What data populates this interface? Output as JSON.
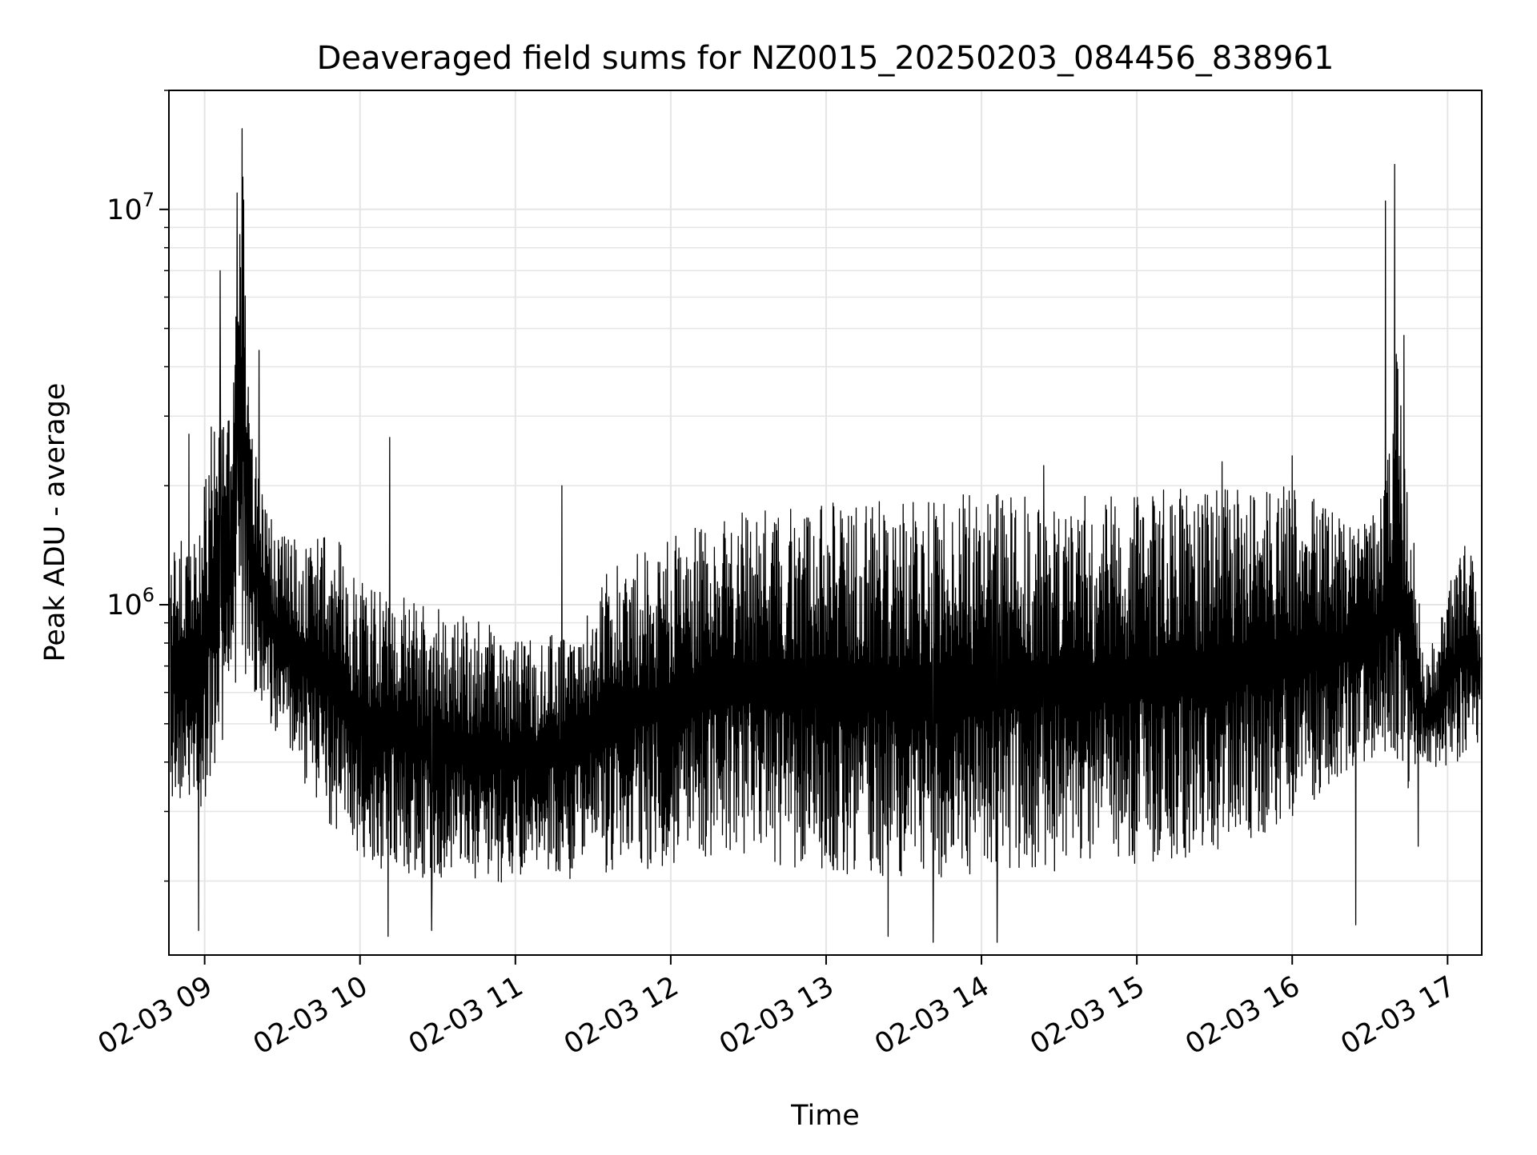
{
  "chart_data": {
    "type": "line",
    "title": "Deaveraged field sums for NZ0015_20250203_084456_838961",
    "xlabel": "Time",
    "ylabel": "Peak ADU - average",
    "yscale": "log",
    "grid": true,
    "legend": "none",
    "line_color": "#000000",
    "grid_color": "#e5e5e5",
    "x_unit": "hour of 2025-02-03",
    "xlim": [
      8.77,
      17.22
    ],
    "ylim": [
      130000,
      20000000
    ],
    "x_ticks": [
      {
        "value": 9,
        "label": "02-03 09"
      },
      {
        "value": 10,
        "label": "02-03 10"
      },
      {
        "value": 11,
        "label": "02-03 11"
      },
      {
        "value": 12,
        "label": "02-03 12"
      },
      {
        "value": 13,
        "label": "02-03 13"
      },
      {
        "value": 14,
        "label": "02-03 14"
      },
      {
        "value": 15,
        "label": "02-03 15"
      },
      {
        "value": 16,
        "label": "02-03 16"
      },
      {
        "value": 17,
        "label": "02-03 17"
      }
    ],
    "y_ticks": [
      {
        "value": 1000000,
        "base": "10",
        "exp": "6"
      },
      {
        "value": 10000000,
        "base": "10",
        "exp": "7"
      }
    ],
    "series": [
      {
        "x": [
          8.78,
          8.85,
          8.92,
          8.97,
          9.02,
          9.07,
          9.12,
          9.17,
          9.22,
          9.25,
          9.3,
          9.35,
          9.45,
          9.55,
          9.65,
          9.75,
          9.85,
          10.0,
          10.2,
          10.4,
          10.6,
          10.8,
          11.0,
          11.2,
          11.4,
          11.6,
          11.8,
          12.0,
          12.2,
          12.4,
          12.6,
          12.8,
          13.0,
          13.2,
          13.4,
          13.6,
          13.8,
          14.0,
          14.2,
          14.4,
          14.6,
          14.8,
          15.0,
          15.2,
          15.4,
          15.6,
          15.8,
          16.0,
          16.2,
          16.4,
          16.55,
          16.62,
          16.67,
          16.72,
          16.78,
          16.85,
          16.95,
          17.05,
          17.15,
          17.21
        ],
        "low": [
          330000,
          310000,
          300000,
          290000,
          340000,
          400000,
          450000,
          520000,
          700000,
          650000,
          600000,
          560000,
          480000,
          400000,
          350000,
          300000,
          260000,
          220000,
          210000,
          200000,
          200000,
          195000,
          200000,
          205000,
          200000,
          205000,
          210000,
          220000,
          230000,
          240000,
          225000,
          215000,
          210000,
          205000,
          200000,
          200000,
          205000,
          210000,
          205000,
          205000,
          210000,
          215000,
          220000,
          225000,
          230000,
          240000,
          260000,
          280000,
          330000,
          380000,
          420000,
          420000,
          360000,
          330000,
          350000,
          380000,
          380000,
          390000,
          420000,
          450000
        ],
        "high": [
          1300000,
          1500000,
          1700000,
          1500000,
          2500000,
          3500000,
          3000000,
          3500000,
          9000000,
          13000000,
          3000000,
          2500000,
          1600000,
          1500000,
          1500000,
          1500000,
          1500000,
          1200000,
          1100000,
          1000000,
          950000,
          900000,
          850000,
          850000,
          900000,
          1300000,
          1400000,
          1500000,
          1600000,
          1700000,
          1750000,
          1800000,
          1800000,
          1850000,
          1850000,
          1850000,
          1900000,
          1900000,
          1900000,
          1900000,
          1900000,
          1900000,
          1950000,
          1950000,
          2000000,
          2000000,
          2000000,
          2000000,
          1800000,
          1600000,
          1700000,
          2500000,
          4500000,
          2500000,
          1800000,
          700000,
          900000,
          1300000,
          1500000,
          900000
        ],
        "spikes": [
          {
            "x": 8.9,
            "y": 2700000
          },
          {
            "x": 9.1,
            "y": 7000000
          },
          {
            "x": 9.21,
            "y": 11000000
          },
          {
            "x": 9.24,
            "y": 16000000
          },
          {
            "x": 9.35,
            "y": 4400000
          },
          {
            "x": 10.19,
            "y": 2650000
          },
          {
            "x": 11.3,
            "y": 2000000
          },
          {
            "x": 14.4,
            "y": 2250000
          },
          {
            "x": 15.55,
            "y": 2300000
          },
          {
            "x": 16.0,
            "y": 2380000
          },
          {
            "x": 16.6,
            "y": 10500000
          },
          {
            "x": 16.66,
            "y": 13000000
          },
          {
            "x": 16.72,
            "y": 4800000
          }
        ],
        "dips": [
          {
            "x": 8.96,
            "y": 150000
          },
          {
            "x": 10.18,
            "y": 145000
          },
          {
            "x": 10.46,
            "y": 150000
          },
          {
            "x": 13.4,
            "y": 145000
          },
          {
            "x": 13.69,
            "y": 140000
          },
          {
            "x": 14.1,
            "y": 140000
          },
          {
            "x": 16.41,
            "y": 155000
          },
          {
            "x": 16.81,
            "y": 245000
          }
        ]
      }
    ]
  }
}
